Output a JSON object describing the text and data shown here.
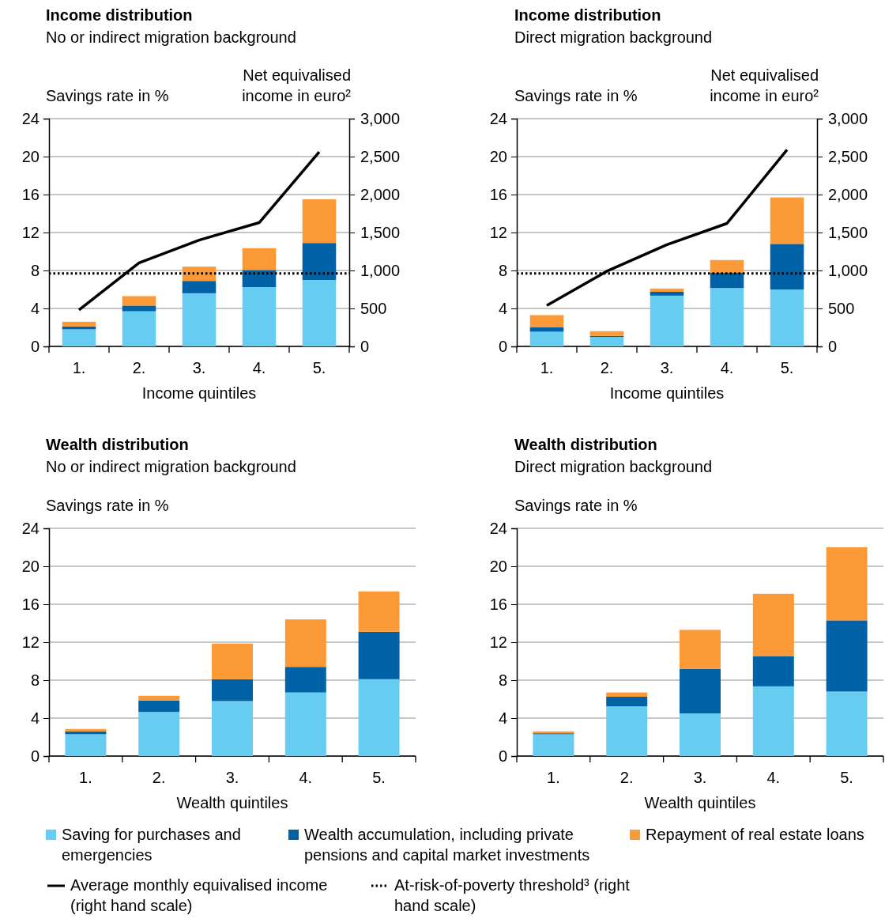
{
  "chart_data": [
    {
      "type": "bar",
      "stacked": true,
      "title": "Income distribution",
      "subtitle": "No or indirect migration background",
      "ylabel": "Savings rate in %",
      "y2label": "Net equivalised income in euro²",
      "xlabel": "Income quintiles",
      "categories": [
        "1.",
        "2.",
        "3.",
        "4.",
        "5."
      ],
      "ylim": [
        0,
        24
      ],
      "yticks": [
        0,
        4,
        8,
        12,
        16,
        20,
        24
      ],
      "y2lim": [
        0,
        3000
      ],
      "y2ticks": [
        {
          "value": 0,
          "label": "0"
        },
        {
          "value": 500,
          "label": "500"
        },
        {
          "value": 1000,
          "label": "1,000"
        },
        {
          "value": 1500,
          "label": "1,500"
        },
        {
          "value": 2000,
          "label": "2,000"
        },
        {
          "value": 2500,
          "label": "2,500"
        },
        {
          "value": 3000,
          "label": "3,000"
        }
      ],
      "grid": "y",
      "legend": "bottom",
      "series": [
        {
          "name": "Saving for purchases and emergencies",
          "color": "#66ccf2",
          "values": [
            1.8,
            3.7,
            5.6,
            6.25,
            7.0
          ]
        },
        {
          "name": "Wealth accumulation, including private pensions and capital market investments",
          "color": "#0062a6",
          "values": [
            0.3,
            0.6,
            1.3,
            1.8,
            3.9
          ]
        },
        {
          "name": "Repayment of real estate loans",
          "color": "#fb9a37",
          "values": [
            0.5,
            1.0,
            1.5,
            2.3,
            4.6
          ]
        },
        {
          "type": "line",
          "axis": "y2",
          "name": "Average monthly equivalised income (right hand scale)",
          "color": "#000000",
          "values": [
            480,
            1100,
            1400,
            1630,
            2560
          ]
        }
      ],
      "ref_lines": [
        {
          "axis": "y2",
          "value": 960,
          "label": "At-risk-of-poverty threshold³ (right hand scale)",
          "color": "#000000",
          "line_style": "dotted"
        }
      ]
    },
    {
      "type": "bar",
      "stacked": true,
      "title": "Income distribution",
      "subtitle": "Direct migration background",
      "ylabel": "Savings rate in %",
      "y2label": "Net equivalised income in euro²",
      "xlabel": "Income quintiles",
      "categories": [
        "1.",
        "2.",
        "3.",
        "4.",
        "5."
      ],
      "ylim": [
        0,
        24
      ],
      "yticks": [
        0,
        4,
        8,
        12,
        16,
        20,
        24
      ],
      "y2lim": [
        0,
        3000
      ],
      "y2ticks": [
        {
          "value": 0,
          "label": "0"
        },
        {
          "value": 500,
          "label": "500"
        },
        {
          "value": 1000,
          "label": "1,000"
        },
        {
          "value": 1500,
          "label": "1,500"
        },
        {
          "value": 2000,
          "label": "2,000"
        },
        {
          "value": 2500,
          "label": "2,500"
        },
        {
          "value": 3000,
          "label": "3,000"
        }
      ],
      "grid": "y",
      "series": [
        {
          "color": "#66ccf2",
          "values": [
            1.55,
            1.0,
            5.35,
            6.15,
            6.0
          ]
        },
        {
          "color": "#0062a6",
          "values": [
            0.45,
            0.1,
            0.4,
            1.6,
            4.8
          ]
        },
        {
          "color": "#fb9a37",
          "values": [
            1.3,
            0.5,
            0.35,
            1.35,
            4.9
          ]
        },
        {
          "type": "line",
          "axis": "y2",
          "color": "#000000",
          "values": [
            540,
            990,
            1340,
            1620,
            2590
          ]
        }
      ],
      "ref_lines": [
        {
          "axis": "y2",
          "value": 960,
          "color": "#000000",
          "line_style": "dotted"
        }
      ]
    },
    {
      "type": "bar",
      "stacked": true,
      "title": "Wealth distribution",
      "subtitle": "No or indirect migration background",
      "ylabel": "Savings rate in %",
      "xlabel": "Wealth quintiles",
      "categories": [
        "1.",
        "2.",
        "3.",
        "4.",
        "5."
      ],
      "ylim": [
        0,
        24
      ],
      "yticks": [
        0,
        4,
        8,
        12,
        16,
        20,
        24
      ],
      "grid": "y",
      "series": [
        {
          "color": "#66ccf2",
          "values": [
            2.3,
            4.65,
            5.8,
            6.7,
            8.1
          ]
        },
        {
          "color": "#0062a6",
          "values": [
            0.3,
            1.2,
            2.3,
            2.7,
            5.0
          ]
        },
        {
          "color": "#fb9a37",
          "values": [
            0.25,
            0.5,
            3.75,
            5.0,
            4.25
          ]
        }
      ]
    },
    {
      "type": "bar",
      "stacked": true,
      "title": "Wealth distribution",
      "subtitle": "Direct migration background",
      "ylabel": "Savings rate in %",
      "xlabel": "Wealth quintiles",
      "categories": [
        "1.",
        "2.",
        "3.",
        "4.",
        "5."
      ],
      "ylim": [
        0,
        24
      ],
      "yticks": [
        0,
        4,
        8,
        12,
        16,
        20,
        24
      ],
      "grid": "y",
      "series": [
        {
          "color": "#66ccf2",
          "values": [
            2.3,
            5.25,
            4.5,
            7.35,
            6.8
          ]
        },
        {
          "color": "#0062a6",
          "values": [
            0.1,
            1.0,
            4.7,
            3.15,
            7.5
          ]
        },
        {
          "color": "#fb9a37",
          "values": [
            0.2,
            0.45,
            4.1,
            6.6,
            7.7
          ]
        }
      ]
    }
  ]
}
